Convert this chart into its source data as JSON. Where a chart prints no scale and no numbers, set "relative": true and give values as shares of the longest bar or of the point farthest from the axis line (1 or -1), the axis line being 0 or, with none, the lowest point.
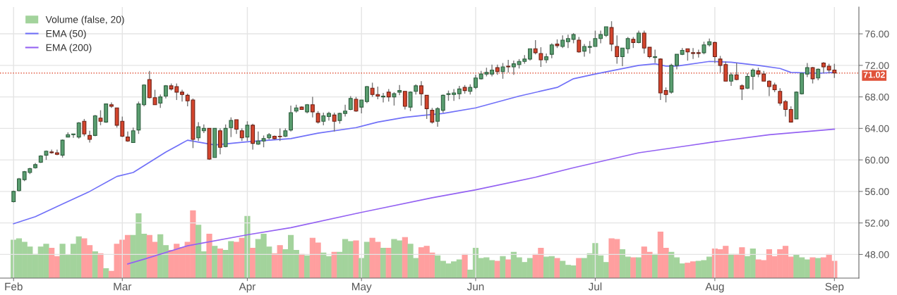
{
  "chart_data": [
    {
      "type": "candlestick",
      "categories": [
        "Feb",
        null,
        null,
        null,
        null,
        null,
        null,
        null,
        null,
        null,
        null,
        null,
        null,
        null,
        null,
        null,
        null,
        null,
        null,
        null,
        "Mar",
        null,
        null,
        null,
        null,
        null,
        null,
        null,
        null,
        null,
        null,
        null,
        null,
        null,
        null,
        null,
        null,
        null,
        null,
        null,
        null,
        null,
        null,
        "Apr",
        null,
        null,
        null,
        null,
        null,
        null,
        null,
        null,
        null,
        null,
        null,
        null,
        null,
        null,
        null,
        null,
        null,
        null,
        null,
        null,
        "May",
        null,
        null,
        null,
        null,
        null,
        null,
        null,
        null,
        null,
        null,
        null,
        null,
        null,
        null,
        null,
        null,
        null,
        null,
        null,
        null,
        "Jun",
        null,
        null,
        null,
        null,
        null,
        null,
        null,
        null,
        null,
        null,
        null,
        null,
        null,
        null,
        null,
        null,
        null,
        null,
        null,
        null,
        null,
        "Jul",
        null,
        null,
        null,
        null,
        null,
        null,
        null,
        null,
        null,
        null,
        null,
        null,
        null,
        null,
        null,
        null,
        null,
        null,
        null,
        null,
        null,
        "Aug",
        null,
        null,
        null,
        null,
        null,
        null,
        null,
        null,
        null,
        null,
        null,
        null,
        null,
        null,
        null,
        null,
        null,
        null,
        null,
        null,
        null,
        "Sep"
      ],
      "ohlc": [
        [
          54.7,
          56.1,
          54.6,
          56.0
        ],
        [
          56.1,
          57.7,
          56.0,
          57.6
        ],
        [
          57.5,
          58.6,
          57.3,
          58.5
        ],
        [
          58.4,
          59.0,
          58.2,
          58.9
        ],
        [
          59.0,
          59.6,
          58.9,
          59.4
        ],
        [
          59.7,
          60.6,
          59.6,
          60.5
        ],
        [
          60.6,
          61.2,
          60.0,
          61.1
        ],
        [
          61.0,
          61.3,
          60.8,
          60.9
        ],
        [
          60.9,
          61.3,
          60.6,
          60.7
        ],
        [
          60.6,
          62.6,
          60.3,
          62.5
        ],
        [
          62.9,
          63.5,
          62.9,
          63.2
        ],
        [
          63.2,
          63.3,
          62.8,
          63.3
        ],
        [
          62.9,
          64.8,
          62.7,
          64.7
        ],
        [
          64.9,
          65.2,
          63.0,
          63.3
        ],
        [
          63.1,
          63.7,
          62.2,
          62.6
        ],
        [
          63.1,
          65.7,
          63.0,
          65.6
        ],
        [
          65.3,
          66.3,
          64.4,
          64.9
        ],
        [
          64.8,
          67.1,
          64.7,
          67.1
        ],
        [
          67.0,
          67.3,
          66.6,
          66.8
        ],
        [
          66.6,
          66.6,
          64.1,
          64.4
        ],
        [
          64.9,
          65.5,
          62.9,
          63.0
        ],
        [
          62.9,
          63.6,
          62.3,
          62.4
        ],
        [
          62.2,
          64.1,
          62.2,
          63.7
        ],
        [
          63.8,
          67.4,
          63.3,
          67.1
        ],
        [
          67.0,
          69.6,
          66.8,
          69.5
        ],
        [
          70.2,
          71.3,
          67.8,
          67.9
        ],
        [
          67.9,
          68.9,
          67.0,
          67.0
        ],
        [
          67.2,
          68.3,
          66.6,
          68.0
        ],
        [
          68.1,
          69.5,
          67.8,
          69.4
        ],
        [
          69.4,
          69.7,
          68.8,
          69.0
        ],
        [
          69.3,
          69.7,
          67.6,
          68.6
        ],
        [
          68.6,
          68.9,
          67.4,
          68.3
        ],
        [
          68.2,
          68.4,
          66.8,
          67.5
        ],
        [
          67.6,
          67.8,
          61.5,
          62.6
        ],
        [
          62.8,
          64.8,
          62.4,
          64.2
        ],
        [
          63.7,
          64.5,
          63.4,
          64.0
        ],
        [
          64.0,
          64.0,
          60.0,
          60.1
        ],
        [
          60.3,
          64.0,
          60.3,
          64.0
        ],
        [
          63.7,
          64.0,
          60.7,
          61.6
        ],
        [
          61.7,
          64.5,
          61.6,
          64.0
        ],
        [
          64.1,
          65.4,
          62.9,
          65.0
        ],
        [
          65.1,
          65.1,
          63.3,
          63.9
        ],
        [
          63.7,
          64.0,
          62.4,
          62.8
        ],
        [
          62.9,
          64.9,
          62.4,
          64.4
        ],
        [
          64.4,
          64.6,
          61.3,
          62.1
        ],
        [
          62.0,
          63.6,
          61.9,
          62.4
        ],
        [
          62.4,
          63.1,
          61.6,
          62.7
        ],
        [
          62.8,
          63.4,
          62.6,
          63.2
        ],
        [
          63.0,
          63.1,
          62.6,
          62.7
        ],
        [
          63.0,
          64.0,
          62.4,
          62.95
        ],
        [
          63.0,
          64.0,
          62.9,
          63.7
        ],
        [
          63.8,
          66.9,
          63.6,
          66.0
        ],
        [
          66.2,
          67.0,
          66.0,
          66.6
        ],
        [
          66.7,
          66.8,
          66.4,
          66.4
        ],
        [
          66.1,
          67.1,
          65.9,
          67.0
        ],
        [
          67.0,
          68.0,
          65.4,
          66.1
        ],
        [
          65.9,
          66.2,
          64.6,
          64.8
        ],
        [
          64.9,
          66.0,
          64.4,
          65.6
        ],
        [
          65.5,
          66.1,
          65.0,
          65.9
        ],
        [
          65.7,
          66.0,
          63.6,
          64.9
        ],
        [
          65.0,
          66.0,
          64.6,
          65.9
        ],
        [
          65.9,
          67.0,
          65.5,
          66.2
        ],
        [
          66.4,
          68.1,
          66.3,
          67.8
        ],
        [
          67.7,
          68.0,
          66.1,
          66.2
        ],
        [
          66.7,
          67.6,
          65.9,
          67.6
        ],
        [
          67.4,
          69.4,
          67.2,
          69.3
        ],
        [
          69.1,
          69.8,
          68.0,
          68.3
        ],
        [
          68.3,
          69.3,
          67.7,
          68.1
        ],
        [
          68.0,
          68.5,
          67.3,
          68.1
        ],
        [
          68.6,
          69.0,
          67.4,
          68.0
        ],
        [
          68.0,
          68.6,
          66.9,
          68.4
        ],
        [
          68.6,
          69.5,
          68.2,
          68.8
        ],
        [
          68.7,
          68.7,
          66.4,
          66.8
        ],
        [
          66.7,
          68.7,
          66.2,
          68.6
        ],
        [
          68.7,
          69.6,
          68.3,
          69.4
        ],
        [
          69.4,
          70.0,
          66.9,
          68.4
        ],
        [
          68.2,
          68.2,
          65.2,
          66.5
        ],
        [
          66.3,
          66.6,
          64.6,
          64.8
        ],
        [
          64.9,
          66.7,
          64.2,
          66.5
        ],
        [
          66.3,
          68.3,
          66.0,
          68.2
        ],
        [
          68.3,
          68.8,
          67.5,
          68.4
        ],
        [
          68.3,
          69.0,
          67.5,
          68.5
        ],
        [
          68.4,
          69.4,
          67.7,
          69.0
        ],
        [
          69.2,
          69.5,
          68.4,
          68.8
        ],
        [
          68.7,
          69.6,
          68.3,
          69.2
        ],
        [
          69.2,
          70.8,
          69.0,
          70.4
        ],
        [
          70.3,
          71.3,
          70.2,
          70.9
        ],
        [
          70.9,
          71.7,
          70.6,
          71.1
        ],
        [
          70.9,
          72.1,
          70.6,
          71.4
        ],
        [
          71.7,
          72.1,
          70.8,
          71.2
        ],
        [
          71.2,
          72.3,
          70.3,
          71.8
        ],
        [
          71.9,
          72.7,
          71.1,
          71.8
        ],
        [
          71.8,
          72.6,
          70.8,
          72.2
        ],
        [
          72.1,
          72.8,
          71.6,
          72.5
        ],
        [
          72.5,
          73.3,
          72.2,
          72.8
        ],
        [
          72.8,
          74.1,
          72.6,
          74.1
        ],
        [
          74.1,
          75.2,
          73.4,
          73.6
        ],
        [
          73.5,
          74.3,
          71.8,
          72.7
        ],
        [
          72.7,
          73.5,
          72.3,
          73.1
        ],
        [
          73.4,
          74.8,
          72.9,
          74.6
        ],
        [
          74.7,
          75.3,
          74.2,
          74.5
        ],
        [
          74.4,
          75.8,
          74.2,
          75.2
        ],
        [
          75.0,
          75.9,
          74.2,
          75.4
        ],
        [
          75.3,
          76.1,
          74.8,
          75.9
        ],
        [
          75.2,
          75.6,
          73.6,
          73.7
        ],
        [
          73.8,
          74.7,
          73.1,
          74.4
        ],
        [
          74.3,
          75.1,
          73.5,
          74.4
        ],
        [
          74.4,
          76.4,
          74.4,
          75.4
        ],
        [
          75.4,
          76.4,
          74.8,
          75.9
        ],
        [
          75.8,
          76.9,
          75.6,
          76.9
        ],
        [
          76.8,
          77.6,
          73.8,
          74.7
        ],
        [
          74.4,
          75.8,
          72.2,
          73.1
        ],
        [
          73.1,
          74.2,
          71.9,
          74.2
        ],
        [
          74.1,
          75.6,
          73.5,
          75.4
        ],
        [
          75.3,
          75.6,
          74.2,
          74.9
        ],
        [
          74.9,
          76.4,
          74.8,
          76.1
        ],
        [
          76.1,
          76.4,
          73.5,
          74.2
        ],
        [
          74.3,
          74.3,
          72.9,
          73.1
        ],
        [
          73.0,
          74.0,
          72.3,
          73.1
        ],
        [
          72.8,
          72.9,
          67.6,
          68.5
        ],
        [
          68.8,
          69.2,
          67.3,
          68.3
        ],
        [
          68.6,
          72.2,
          68.4,
          72.0
        ],
        [
          72.0,
          73.4,
          71.5,
          73.4
        ],
        [
          73.4,
          74.2,
          73.3,
          73.9
        ],
        [
          74.1,
          74.1,
          72.6,
          73.7
        ],
        [
          73.6,
          74.2,
          72.8,
          73.5
        ],
        [
          73.6,
          74.0,
          73.0,
          73.5
        ],
        [
          73.6,
          75.0,
          73.4,
          74.6
        ],
        [
          74.6,
          75.4,
          74.4,
          75.0
        ],
        [
          74.9,
          75.0,
          72.3,
          73.1
        ],
        [
          72.8,
          73.2,
          71.1,
          72.0
        ],
        [
          72.1,
          72.5,
          70.0,
          70.0
        ],
        [
          70.0,
          71.1,
          69.4,
          70.8
        ],
        [
          70.8,
          72.3,
          70.1,
          70.2
        ],
        [
          69.4,
          69.6,
          67.6,
          69.0
        ],
        [
          69.1,
          71.0,
          69.0,
          70.6
        ],
        [
          70.6,
          71.6,
          68.9,
          71.4
        ],
        [
          71.3,
          71.7,
          70.5,
          70.9
        ],
        [
          70.9,
          71.3,
          70.0,
          70.0
        ],
        [
          70.0,
          70.1,
          68.1,
          69.3
        ],
        [
          69.5,
          69.8,
          68.6,
          68.9
        ],
        [
          68.7,
          69.1,
          66.9,
          67.2
        ],
        [
          67.4,
          67.6,
          65.5,
          66.4
        ],
        [
          66.4,
          66.8,
          64.8,
          64.8
        ],
        [
          65.2,
          68.7,
          65.2,
          68.6
        ],
        [
          68.4,
          71.0,
          68.3,
          71.0
        ],
        [
          70.9,
          72.3,
          70.5,
          71.7
        ],
        [
          71.7,
          71.8,
          69.7,
          70.3
        ],
        [
          70.4,
          71.6,
          70.1,
          71.5
        ],
        [
          72.3,
          72.4,
          71.0,
          71.8
        ],
        [
          71.9,
          72.2,
          71.0,
          71.4
        ],
        [
          71.4,
          72.2,
          70.4,
          71.02
        ]
      ],
      "series": [
        {
          "name": "EMA (50)",
          "type": "line",
          "color": "#7070f8",
          "values": [
            51.9,
            null,
            null,
            null,
            52.8,
            null,
            null,
            null,
            null,
            54.4,
            null,
            null,
            null,
            null,
            56.0,
            null,
            null,
            null,
            null,
            57.9,
            null,
            null,
            58.4,
            null,
            null,
            59.7,
            null,
            null,
            61.0,
            null,
            null,
            null,
            62.5,
            null,
            null,
            null,
            null,
            61.9,
            null,
            null,
            null,
            null,
            null,
            62.3,
            null,
            null,
            null,
            null,
            null,
            null,
            null,
            62.7,
            null,
            null,
            null,
            null,
            63.4,
            null,
            null,
            null,
            null,
            null,
            null,
            64.1,
            null,
            null,
            null,
            64.8,
            null,
            null,
            null,
            null,
            65.4,
            null,
            null,
            null,
            65.7,
            null,
            null,
            65.9,
            null,
            null,
            null,
            null,
            null,
            66.6,
            null,
            null,
            null,
            null,
            null,
            null,
            null,
            68.1,
            null,
            null,
            null,
            null,
            null,
            null,
            69.2,
            null,
            null,
            70.3,
            null,
            null,
            null,
            70.9,
            null,
            null,
            null,
            null,
            null,
            null,
            null,
            72.0,
            null,
            null,
            72.2,
            null,
            71.9,
            null,
            71.9,
            null,
            null,
            null,
            null,
            null,
            72.5,
            null,
            null,
            null,
            72.4,
            null,
            null,
            null,
            null,
            72.0,
            null,
            null,
            null,
            71.6,
            null,
            71.1,
            null,
            null,
            null,
            null,
            71.0,
            null,
            null,
            71.1
          ]
        },
        {
          "name": "EMA (200)",
          "type": "line",
          "color": "#9462f2",
          "values": [
            null,
            null,
            null,
            null,
            null,
            null,
            null,
            null,
            null,
            null,
            null,
            null,
            null,
            null,
            null,
            null,
            null,
            null,
            null,
            null,
            null,
            46.8,
            null,
            null,
            47.4,
            null,
            null,
            null,
            null,
            null,
            null,
            null,
            49.1,
            null,
            null,
            null,
            null,
            null,
            null,
            null,
            null,
            null,
            null,
            50.5,
            null,
            null,
            null,
            null,
            null,
            null,
            null,
            51.4,
            null,
            null,
            null,
            null,
            null,
            null,
            null,
            null,
            null,
            null,
            null,
            53.2,
            null,
            null,
            null,
            null,
            null,
            null,
            null,
            null,
            null,
            null,
            null,
            null,
            null,
            55.2,
            null,
            null,
            null,
            null,
            null,
            null,
            null,
            56.2,
            null,
            null,
            null,
            null,
            null,
            null,
            null,
            null,
            null,
            null,
            57.8,
            null,
            null,
            null,
            null,
            null,
            null,
            59.0,
            null,
            null,
            null,
            null,
            null,
            null,
            null,
            null,
            null,
            null,
            null,
            60.9,
            null,
            null,
            null,
            null,
            null,
            null,
            null,
            null,
            61.8,
            null,
            null,
            null,
            null,
            62.3,
            null,
            null,
            null,
            null,
            null,
            null,
            null,
            null,
            null,
            63.2,
            null,
            null,
            null,
            null,
            null,
            null,
            null,
            null,
            null,
            null,
            null,
            63.9
          ]
        }
      ],
      "ylim": [
        45,
        79.4
      ],
      "yticks": [
        {
          "value": 48,
          "label": "48.00"
        },
        {
          "value": 52,
          "label": "52.00"
        },
        {
          "value": 56,
          "label": "56.00"
        },
        {
          "value": 60,
          "label": "60.00"
        },
        {
          "value": 64,
          "label": "64.00"
        },
        {
          "value": 68,
          "label": "68.00"
        },
        {
          "value": 72,
          "label": "72.00"
        },
        {
          "value": 76,
          "label": "76.00"
        }
      ],
      "ref_lines": [
        {
          "axis": "y",
          "value": 71.02,
          "label": "71.02",
          "color": "#e0533a",
          "line_style": "dotted"
        }
      ],
      "grid": true,
      "legend": "top left"
    },
    {
      "type": "bar",
      "relative": true,
      "categories": [
        null,
        null,
        null,
        null,
        null,
        null,
        null,
        null,
        null,
        null,
        null,
        null,
        null,
        null,
        null,
        null,
        null,
        null,
        null,
        null,
        null,
        null,
        null,
        null,
        null,
        null,
        null,
        null,
        null,
        null,
        null,
        null,
        null,
        null,
        null,
        null,
        null,
        null,
        null,
        null,
        null,
        null,
        null,
        null,
        null,
        null,
        null,
        null,
        null,
        null,
        null,
        null,
        null,
        null,
        null,
        null,
        null,
        null,
        null,
        null,
        null,
        null,
        null,
        null,
        null,
        null,
        null,
        null,
        null,
        null,
        null,
        null,
        null,
        null,
        null,
        null,
        null,
        null,
        null,
        null,
        null,
        null,
        null,
        null,
        null,
        null,
        null,
        null,
        null,
        null,
        null,
        null,
        null,
        null,
        null,
        null,
        null,
        null,
        null,
        null,
        null,
        null,
        null,
        null,
        null,
        null,
        null,
        null,
        null,
        null,
        null,
        null,
        null,
        null,
        null,
        null,
        null,
        null,
        null,
        null,
        null,
        null,
        null,
        null,
        null,
        null,
        null,
        null,
        null,
        null,
        null,
        null,
        null,
        null,
        null,
        null,
        null,
        null,
        null,
        null,
        null,
        null,
        null,
        null,
        null,
        null,
        null,
        null,
        null,
        null,
        null,
        null
      ],
      "series": [
        {
          "name": "Volume (false, 20)",
          "values": [
            0.56,
            0.58,
            0.53,
            0.46,
            0.35,
            0.46,
            0.5,
            0.44,
            0.32,
            0.5,
            0.34,
            0.5,
            0.61,
            0.58,
            0.48,
            0.39,
            0.36,
            0.14,
            0.1,
            0.5,
            0.56,
            0.63,
            0.63,
            0.95,
            0.65,
            0.63,
            0.53,
            0.64,
            0.48,
            0.41,
            0.5,
            0.45,
            0.53,
            1,
            0.78,
            0.39,
            0.65,
            0.47,
            0.43,
            0.41,
            0.54,
            0.53,
            0.59,
            0.91,
            0.44,
            0.57,
            0.65,
            0.46,
            0.36,
            0.48,
            0.42,
            0.63,
            0.41,
            0.35,
            0.33,
            0.59,
            0.52,
            0.37,
            0.32,
            0.38,
            0.38,
            0.57,
            0.54,
            0.55,
            0.29,
            0.53,
            0.59,
            0.53,
            0.44,
            0.44,
            0.57,
            0.55,
            0.6,
            0.5,
            0.29,
            0.45,
            0.47,
            0.37,
            0.33,
            0.25,
            0.21,
            0.24,
            0.27,
            0.35,
            0.12,
            0.44,
            0.29,
            0.3,
            0.26,
            0.25,
            0.32,
            0.27,
            0.38,
            0.3,
            0.23,
            0.29,
            0.35,
            0.44,
            0.31,
            0.32,
            0.29,
            0.25,
            0.19,
            0.18,
            0.29,
            0.29,
            0.36,
            0.51,
            0.33,
            0.23,
            0.58,
            0.57,
            0.42,
            0.31,
            0.3,
            0.3,
            0.46,
            0.38,
            0.35,
            0.68,
            0.44,
            0.38,
            0.3,
            0.21,
            0.22,
            0.24,
            0.25,
            0.26,
            0.31,
            0.43,
            0.42,
            0.47,
            0.35,
            0.35,
            0.45,
            0.32,
            0.43,
            0.27,
            0.26,
            0.42,
            0.32,
            0.42,
            0.47,
            0.31,
            0.34,
            0.3,
            0.27,
            0.3,
            0.29,
            0.3,
            0.35,
            0.25
          ],
          "colors": [
            "#a3d39c",
            "#a3d39c",
            "#a3d39c",
            "#a3d39c",
            "#a3d39c",
            "#a3d39c",
            "#a3d39c",
            "#ff9f9f",
            "#ff9f9f",
            "#a3d39c",
            "#a3d39c",
            "#a3d39c",
            "#a3d39c",
            "#ff9f9f",
            "#ff9f9f",
            "#a3d39c",
            "#ff9f9f",
            "#a3d39c",
            "#ff9f9f",
            "#ff9f9f",
            "#ff9f9f",
            "#ff9f9f",
            "#a3d39c",
            "#a3d39c",
            "#a3d39c",
            "#ff9f9f",
            "#ff9f9f",
            "#a3d39c",
            "#a3d39c",
            "#ff9f9f",
            "#ff9f9f",
            "#ff9f9f",
            "#ff9f9f",
            "#ff9f9f",
            "#a3d39c",
            "#a3d39c",
            "#ff9f9f",
            "#a3d39c",
            "#ff9f9f",
            "#a3d39c",
            "#a3d39c",
            "#ff9f9f",
            "#ff9f9f",
            "#a3d39c",
            "#ff9f9f",
            "#a3d39c",
            "#a3d39c",
            "#a3d39c",
            "#ff9f9f",
            "#ff9f9f",
            "#a3d39c",
            "#a3d39c",
            "#a3d39c",
            "#ff9f9f",
            "#a3d39c",
            "#ff9f9f",
            "#ff9f9f",
            "#a3d39c",
            "#a3d39c",
            "#ff9f9f",
            "#a3d39c",
            "#a3d39c",
            "#a3d39c",
            "#ff9f9f",
            "#a3d39c",
            "#a3d39c",
            "#ff9f9f",
            "#ff9f9f",
            "#a3d39c",
            "#ff9f9f",
            "#a3d39c",
            "#a3d39c",
            "#ff9f9f",
            "#a3d39c",
            "#a3d39c",
            "#ff9f9f",
            "#ff9f9f",
            "#ff9f9f",
            "#a3d39c",
            "#a3d39c",
            "#a3d39c",
            "#a3d39c",
            "#a3d39c",
            "#ff9f9f",
            "#a3d39c",
            "#a3d39c",
            "#a3d39c",
            "#a3d39c",
            "#a3d39c",
            "#ff9f9f",
            "#a3d39c",
            "#ff9f9f",
            "#a3d39c",
            "#a3d39c",
            "#a3d39c",
            "#a3d39c",
            "#ff9f9f",
            "#ff9f9f",
            "#a3d39c",
            "#a3d39c",
            "#ff9f9f",
            "#a3d39c",
            "#a3d39c",
            "#a3d39c",
            "#ff9f9f",
            "#a3d39c",
            "#a3d39c",
            "#a3d39c",
            "#a3d39c",
            "#a3d39c",
            "#ff9f9f",
            "#ff9f9f",
            "#a3d39c",
            "#a3d39c",
            "#ff9f9f",
            "#a3d39c",
            "#ff9f9f",
            "#ff9f9f",
            "#a3d39c",
            "#ff9f9f",
            "#ff9f9f",
            "#a3d39c",
            "#a3d39c",
            "#a3d39c",
            "#ff9f9f",
            "#ff9f9f",
            "#a3d39c",
            "#a3d39c",
            "#a3d39c",
            "#ff9f9f",
            "#ff9f9f",
            "#ff9f9f",
            "#a3d39c",
            "#ff9f9f",
            "#ff9f9f",
            "#a3d39c",
            "#a3d39c",
            "#ff9f9f",
            "#ff9f9f",
            "#ff9f9f",
            "#ff9f9f",
            "#ff9f9f",
            "#ff9f9f",
            "#ff9f9f",
            "#a3d39c",
            "#a3d39c",
            "#a3d39c",
            "#ff9f9f",
            "#a3d39c",
            "#ff9f9f",
            "#ff9f9f",
            "#ff9f9f"
          ]
        }
      ]
    }
  ]
}
